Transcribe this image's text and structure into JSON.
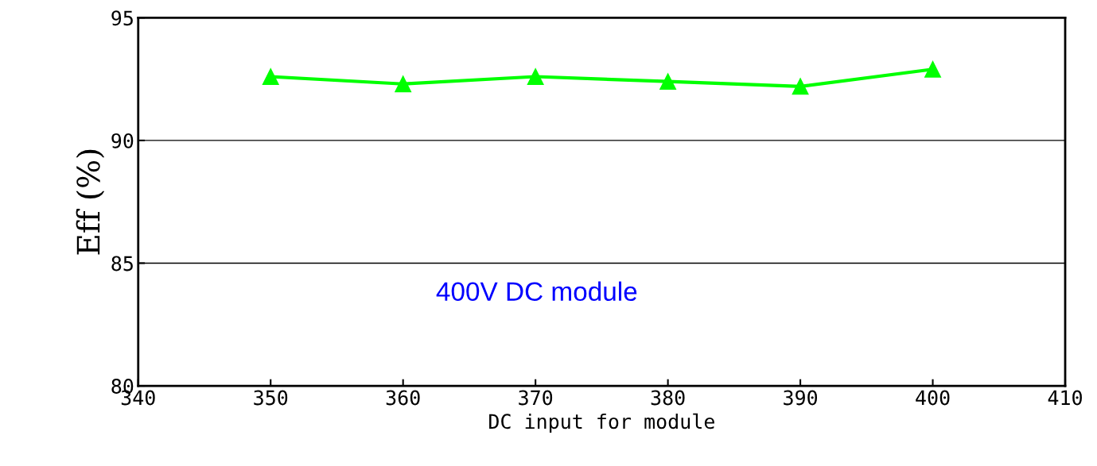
{
  "chart_data": {
    "type": "line",
    "xlabel": "DC input for module",
    "ylabel": "Eff (%)",
    "x": [
      350,
      360,
      370,
      380,
      390,
      400
    ],
    "series": [
      {
        "color": "#00ff00",
        "values": [
          92.6,
          92.3,
          92.6,
          92.4,
          92.2,
          92.9
        ]
      }
    ],
    "xlim": [
      340,
      410
    ],
    "xticks": [
      340,
      350,
      360,
      370,
      380,
      390,
      400,
      410
    ],
    "ylim": [
      80,
      95
    ],
    "yticks": [
      80,
      85,
      90,
      95
    ],
    "grid": "y",
    "marker": "triangle",
    "line_style": "solid",
    "annotations": [
      "400V DC module"
    ]
  }
}
